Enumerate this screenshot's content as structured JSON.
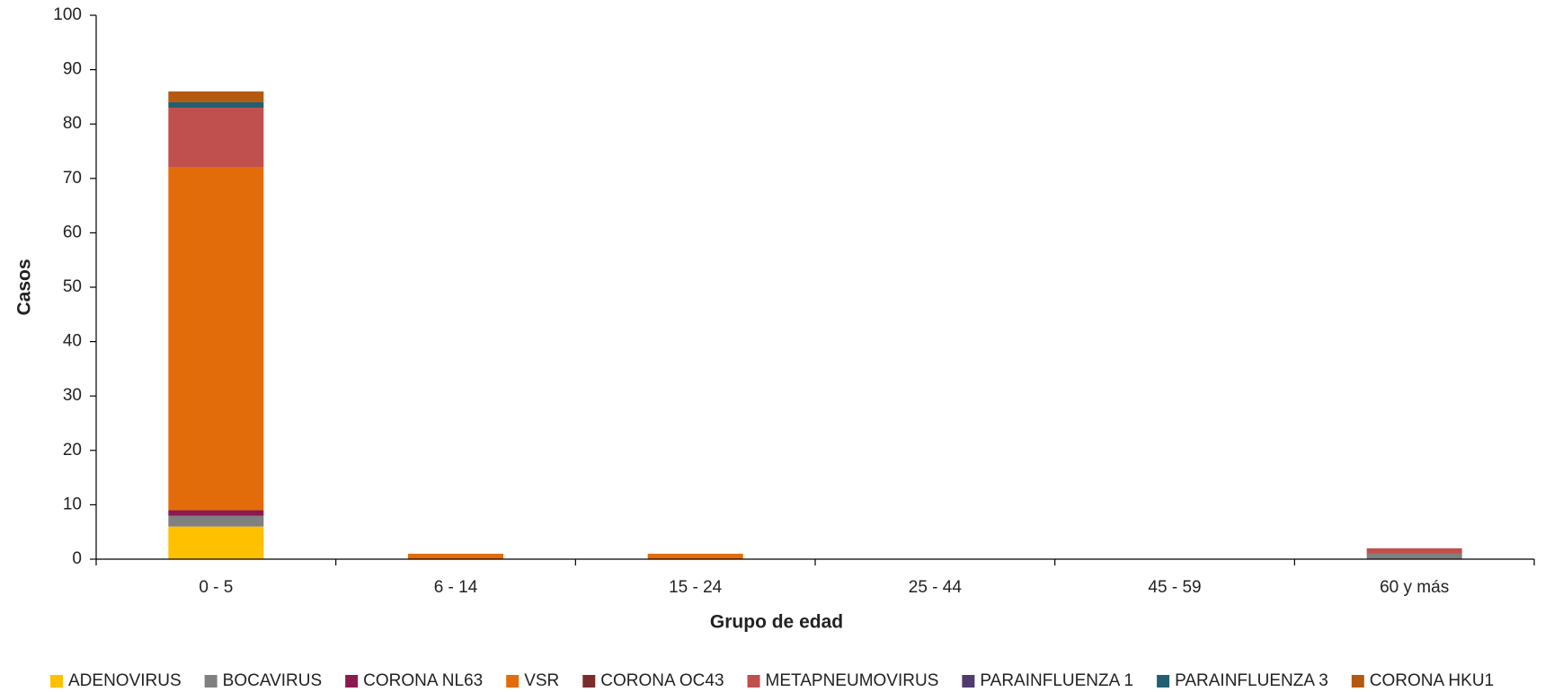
{
  "chart_data": {
    "type": "stacked_bar",
    "xlabel": "Grupo de edad",
    "ylabel": "Casos",
    "categories": [
      "0 - 5",
      "6 - 14",
      "15 - 24",
      "25 - 44",
      "45 - 59",
      "60 y más"
    ],
    "series": [
      {
        "name": "ADENOVIRUS",
        "color": "#ffc000",
        "values": [
          6,
          0,
          0,
          0,
          0,
          0
        ]
      },
      {
        "name": "BOCAVIRUS",
        "color": "#808080",
        "values": [
          2,
          0,
          0,
          0,
          0,
          1
        ]
      },
      {
        "name": "CORONA NL63",
        "color": "#8b1a4f",
        "values": [
          1,
          0,
          0,
          0,
          0,
          0
        ]
      },
      {
        "name": "VSR",
        "color": "#e36c0a",
        "values": [
          63,
          1,
          1,
          0,
          0,
          0
        ]
      },
      {
        "name": "CORONA OC43",
        "color": "#7b2c2c",
        "values": [
          0,
          0,
          0,
          0,
          0,
          0
        ]
      },
      {
        "name": "METAPNEUMOVIRUS",
        "color": "#c0504d",
        "values": [
          11,
          0,
          0,
          0,
          0,
          1
        ]
      },
      {
        "name": "PARAINFLUENZA 1",
        "color": "#4f3b6e",
        "values": [
          0,
          0,
          0,
          0,
          0,
          0
        ]
      },
      {
        "name": "PARAINFLUENZA 3",
        "color": "#215f73",
        "values": [
          1,
          0,
          0,
          0,
          0,
          0
        ]
      },
      {
        "name": "CORONA HKU1",
        "color": "#b35a10",
        "values": [
          2,
          0,
          0,
          0,
          0,
          0
        ]
      }
    ],
    "ylim": [
      0,
      100
    ],
    "yticks": [
      0,
      10,
      20,
      30,
      40,
      50,
      60,
      70,
      80,
      90,
      100
    ],
    "legend": "bottom"
  }
}
